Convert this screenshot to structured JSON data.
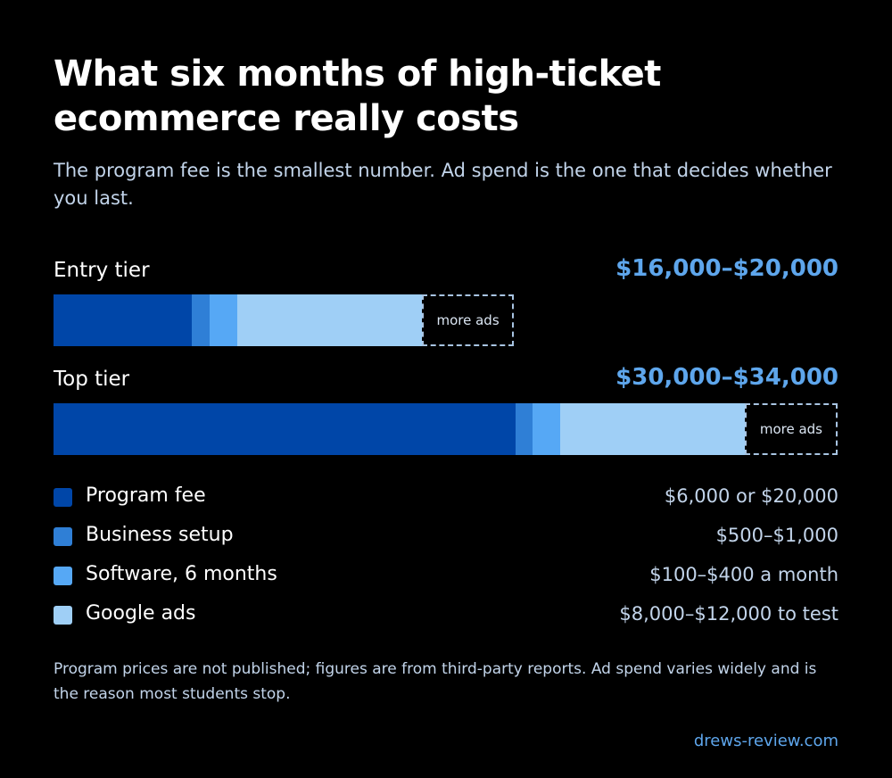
{
  "title": "What six months of high-ticket ecommerce really costs",
  "subtitle": "The program fee is the smallest number. Ad spend is the one that decides whether you last.",
  "chart_data": {
    "type": "bar",
    "orientation": "horizontal",
    "stacked": true,
    "categories": [
      "Entry tier",
      "Top tier"
    ],
    "totals": [
      "$16,000–$20,000",
      "$30,000–$34,000"
    ],
    "overflow_label": "more ads",
    "series": [
      {
        "name": "Program fee",
        "values": [
          6000,
          20000
        ],
        "color": "#0046a8"
      },
      {
        "name": "Business setup",
        "values": [
          750,
          750
        ],
        "color": "#2f7fd6"
      },
      {
        "name": "Software, 6 months",
        "values": [
          1200,
          1200
        ],
        "color": "#56a8f5"
      },
      {
        "name": "Google ads",
        "values": [
          8000,
          8000
        ],
        "color": "#9fcff6"
      },
      {
        "name": "more ads",
        "values": [
          4000,
          4000
        ],
        "color": "dashed"
      }
    ],
    "xlim": [
      0,
      34000
    ],
    "grid": false
  },
  "legend": [
    {
      "label": "Program fee",
      "value": "$6,000 or $20,000",
      "color": "#0046a8"
    },
    {
      "label": "Business setup",
      "value": "$500–$1,000",
      "color": "#2f7fd6"
    },
    {
      "label": "Software, 6 months",
      "value": "$100–$400 a month",
      "color": "#56a8f5"
    },
    {
      "label": "Google ads",
      "value": "$8,000–$12,000 to test",
      "color": "#9fcff6"
    }
  ],
  "footnote": "Program prices are not published; figures are from third-party reports. Ad spend varies widely and is the reason most students stop.",
  "source": "drews-review.com"
}
